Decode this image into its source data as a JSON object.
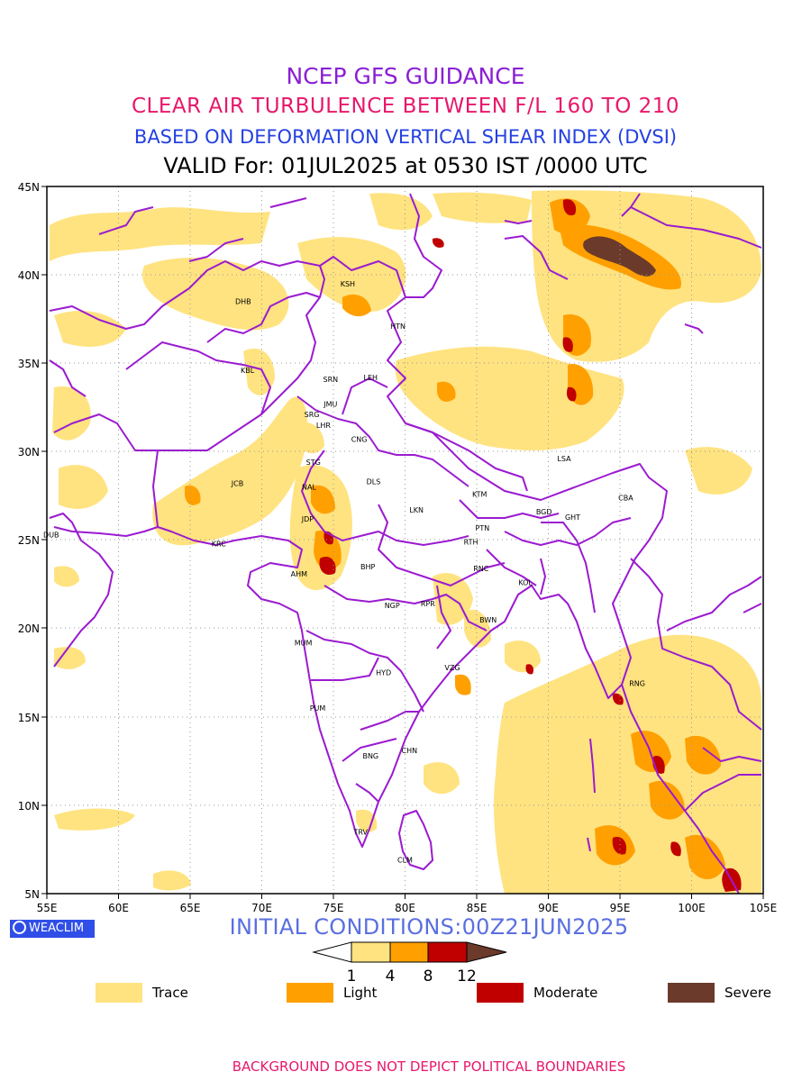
{
  "header": {
    "title": "NCEP GFS GUIDANCE",
    "subtitle": "CLEAR AIR TURBULENCE BETWEEN F/L 160 TO 210",
    "index_line": "BASED ON DEFORMATION VERTICAL SHEAR INDEX (DVSI)",
    "valid_line": "VALID For: 01JUL2025 at 0530 IST /0000 UTC"
  },
  "colors": {
    "title": "#8a1fd6",
    "subtitle": "#e8176a",
    "index_line": "#2541e0",
    "boundary": "#9b1bd0",
    "trace": "#ffe380",
    "light": "#ffa000",
    "moderate": "#c00000",
    "severe": "#6b3a2a"
  },
  "map": {
    "lon_range": [
      55,
      105
    ],
    "lat_range": [
      5,
      45
    ],
    "lon_ticks": [
      "55E",
      "60E",
      "65E",
      "70E",
      "75E",
      "80E",
      "85E",
      "90E",
      "95E",
      "100E",
      "105E"
    ],
    "lat_ticks": [
      "45N",
      "40N",
      "35N",
      "30N",
      "25N",
      "20N",
      "15N",
      "10N",
      "5N"
    ],
    "stations": [
      {
        "code": "KSH",
        "lon": 76.0,
        "lat": 39.5
      },
      {
        "code": "DHB",
        "lon": 68.7,
        "lat": 38.5
      },
      {
        "code": "HTN",
        "lon": 79.5,
        "lat": 37.1
      },
      {
        "code": "KBL",
        "lon": 69.0,
        "lat": 34.6
      },
      {
        "code": "SRN",
        "lon": 74.8,
        "lat": 34.1
      },
      {
        "code": "LEH",
        "lon": 77.6,
        "lat": 34.2
      },
      {
        "code": "JMU",
        "lon": 74.8,
        "lat": 32.7
      },
      {
        "code": "SRG",
        "lon": 73.5,
        "lat": 32.1
      },
      {
        "code": "LHR",
        "lon": 74.3,
        "lat": 31.5
      },
      {
        "code": "CNG",
        "lon": 76.8,
        "lat": 30.7
      },
      {
        "code": "STG",
        "lon": 73.6,
        "lat": 29.4
      },
      {
        "code": "LSA",
        "lon": 91.1,
        "lat": 29.6
      },
      {
        "code": "JCB",
        "lon": 68.3,
        "lat": 28.2
      },
      {
        "code": "NAL",
        "lon": 73.3,
        "lat": 28.0
      },
      {
        "code": "DLS",
        "lon": 77.8,
        "lat": 28.3
      },
      {
        "code": "KTM",
        "lon": 85.2,
        "lat": 27.6
      },
      {
        "code": "CBA",
        "lon": 95.4,
        "lat": 27.4
      },
      {
        "code": "LKN",
        "lon": 80.8,
        "lat": 26.7
      },
      {
        "code": "BGD",
        "lon": 89.7,
        "lat": 26.6
      },
      {
        "code": "GHT",
        "lon": 91.7,
        "lat": 26.3
      },
      {
        "code": "JDP",
        "lon": 73.2,
        "lat": 26.2
      },
      {
        "code": "PTN",
        "lon": 85.4,
        "lat": 25.7
      },
      {
        "code": "DUB",
        "lon": 55.3,
        "lat": 25.3
      },
      {
        "code": "KRC",
        "lon": 67.0,
        "lat": 24.8
      },
      {
        "code": "RTH",
        "lon": 84.6,
        "lat": 24.9
      },
      {
        "code": "BHP",
        "lon": 77.4,
        "lat": 23.5
      },
      {
        "code": "AHM",
        "lon": 72.6,
        "lat": 23.1
      },
      {
        "code": "RNC",
        "lon": 85.3,
        "lat": 23.4
      },
      {
        "code": "KOL",
        "lon": 88.4,
        "lat": 22.6
      },
      {
        "code": "NGP",
        "lon": 79.1,
        "lat": 21.3
      },
      {
        "code": "RPR",
        "lon": 81.6,
        "lat": 21.4
      },
      {
        "code": "BWN",
        "lon": 85.8,
        "lat": 20.5
      },
      {
        "code": "MUM",
        "lon": 72.9,
        "lat": 19.2
      },
      {
        "code": "HYD",
        "lon": 78.5,
        "lat": 17.5
      },
      {
        "code": "VZG",
        "lon": 83.3,
        "lat": 17.8
      },
      {
        "code": "RNG",
        "lon": 96.2,
        "lat": 16.9
      },
      {
        "code": "PUM",
        "lon": 73.9,
        "lat": 15.5
      },
      {
        "code": "CHN",
        "lon": 80.3,
        "lat": 13.1
      },
      {
        "code": "BNG",
        "lon": 77.6,
        "lat": 12.8
      },
      {
        "code": "TRV",
        "lon": 76.9,
        "lat": 8.5
      },
      {
        "code": "CLM",
        "lon": 80.0,
        "lat": 6.9
      }
    ]
  },
  "branding": "WEACLIM",
  "initial_conditions": "INITIAL CONDITIONS:00Z21JUN2025",
  "colorbar": {
    "ticks": [
      "1",
      "4",
      "8",
      "12"
    ]
  },
  "legend": [
    {
      "label": "Trace",
      "color": "#ffe380"
    },
    {
      "label": "Light",
      "color": "#ffa000"
    },
    {
      "label": "Moderate",
      "color": "#c00000"
    },
    {
      "label": "Severe",
      "color": "#6b3a2a"
    }
  ],
  "disclaimer": "BACKGROUND DOES NOT DEPICT POLITICAL BOUNDARIES"
}
